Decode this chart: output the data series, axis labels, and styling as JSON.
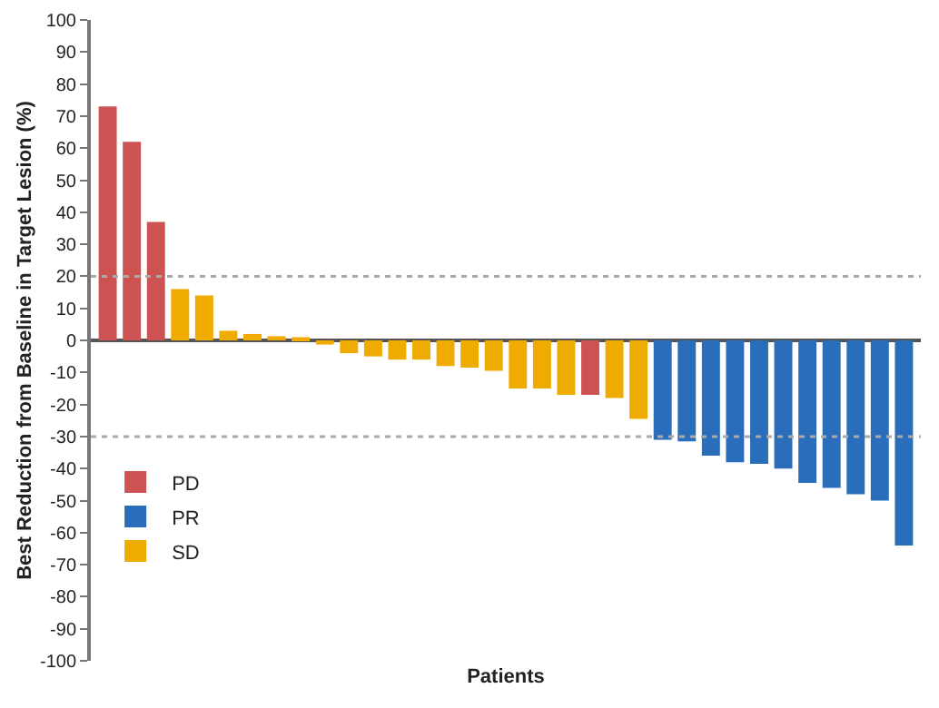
{
  "chart_data": {
    "type": "bar",
    "xlabel": "Patients",
    "ylabel": "Best Reduction from Baseline in Target Lesion (%)",
    "categories": [
      null,
      null,
      null,
      null,
      null,
      null,
      null,
      null,
      null,
      null,
      null,
      null,
      null,
      null,
      null,
      null,
      null,
      null,
      null,
      null,
      null,
      null,
      null,
      null,
      null,
      null,
      null,
      null,
      null,
      null,
      null,
      null,
      null,
      null
    ],
    "series": [
      {
        "name": "PD",
        "color": "#cd5353",
        "values": [
          73,
          62,
          37,
          null,
          null,
          null,
          null,
          null,
          null,
          null,
          null,
          null,
          null,
          null,
          null,
          null,
          null,
          null,
          null,
          null,
          -17,
          null,
          null,
          null,
          null,
          null,
          null,
          null,
          null,
          null,
          null,
          null,
          null,
          null
        ]
      },
      {
        "name": "PR",
        "color": "#2a6ebb",
        "values": [
          null,
          null,
          null,
          null,
          null,
          null,
          null,
          null,
          null,
          null,
          null,
          null,
          null,
          null,
          null,
          null,
          null,
          null,
          null,
          null,
          null,
          null,
          null,
          -31,
          -31.5,
          -36,
          -38,
          -38.5,
          -40,
          -44.5,
          -46,
          -48,
          -50,
          -64
        ]
      },
      {
        "name": "SD",
        "color": "#f0ab00",
        "values": [
          null,
          null,
          null,
          16,
          14,
          3,
          2,
          1.3,
          1,
          -1.3,
          -4,
          -5,
          -6,
          -6,
          -8,
          -8.5,
          -9.5,
          -15,
          -15,
          -17,
          null,
          -18,
          -24.5,
          null,
          null,
          null,
          null,
          null,
          null,
          null,
          null,
          null,
          null,
          null
        ]
      }
    ],
    "ylim": [
      -100,
      100
    ],
    "yticks": [
      -100,
      -90,
      -80,
      -70,
      -60,
      -50,
      -40,
      -30,
      -20,
      -10,
      0,
      10,
      20,
      30,
      40,
      50,
      60,
      70,
      80,
      90,
      100
    ],
    "ref_lines": [
      {
        "axis": "y",
        "value": 20,
        "color": "#aaaaaa",
        "line_style": "dotted"
      },
      {
        "axis": "y",
        "value": -30,
        "color": "#aaaaaa",
        "line_style": "dotted"
      }
    ],
    "legend": "bottom left",
    "tick_labels": "y"
  }
}
